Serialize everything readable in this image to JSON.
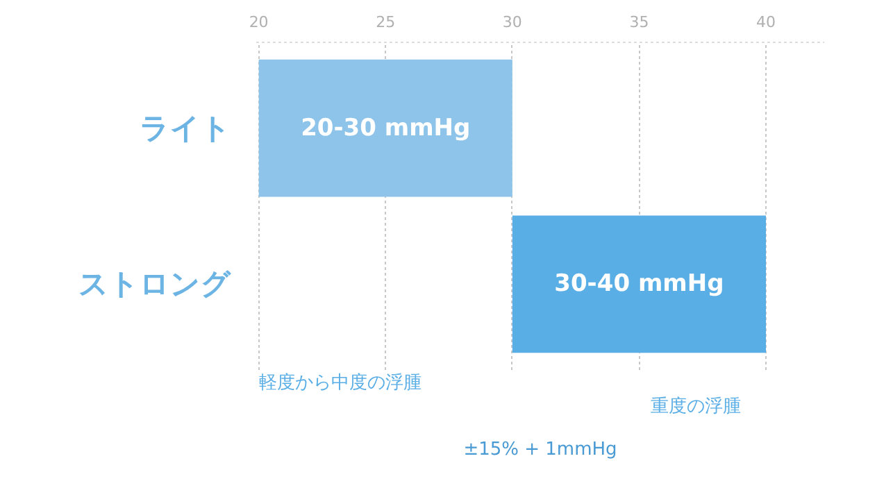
{
  "chart_data": {
    "type": "bar",
    "orientation": "horizontal",
    "categories": [
      "ライト",
      "ストロング"
    ],
    "base": [
      20,
      30
    ],
    "values": [
      10,
      10
    ],
    "value_labels": [
      "20-30 mmHg",
      "30-40 mmHg"
    ],
    "colors": [
      "#8ec4ea",
      "#5aaee6"
    ],
    "xlim": [
      19.9,
      42.3
    ],
    "xticks": [
      20,
      25,
      30,
      35,
      40
    ],
    "grid": "x",
    "annotations": [
      "軽度から中度の浮腫",
      "重度の浮腫",
      "±15% + 1mmHg"
    ]
  }
}
